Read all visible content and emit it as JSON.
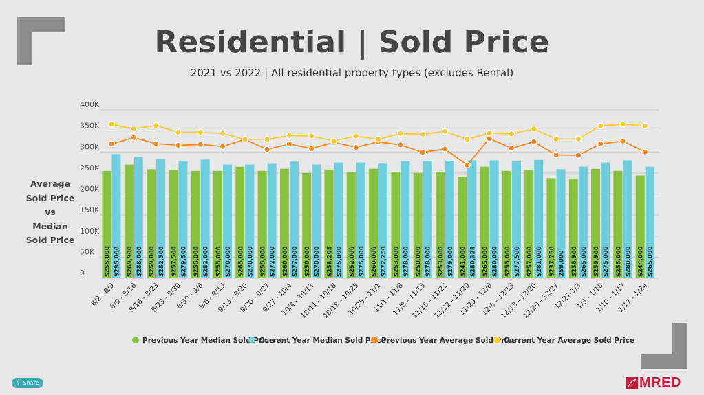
{
  "header": {
    "title": "Residential | Sold Price",
    "subtitle": "2021 vs 2022 | All residential property types (excludes Rental)"
  },
  "y_axis_label_lines": [
    "Average",
    "Sold Price",
    "vs",
    "Median",
    "Sold Price"
  ],
  "share_label": "Share",
  "logo_text": "MRED",
  "colors": {
    "prev_median": "#86c240",
    "curr_median": "#6fcedd",
    "prev_avg": "#f5891f",
    "curr_avg": "#fdc92f",
    "title": "#454545"
  },
  "chart_data": {
    "type": "bar",
    "title": "Residential | Sold Price",
    "ylabel": "Average Sold Price vs Median Sold Price",
    "ylim": [
      0,
      400000
    ],
    "yticks": [
      0,
      50000,
      100000,
      150000,
      200000,
      250000,
      300000,
      350000,
      400000
    ],
    "ytick_labels": [
      "0",
      "50K",
      "100K",
      "150K",
      "200K",
      "250K",
      "300K",
      "350K",
      "400K"
    ],
    "grid": true,
    "legend_position": "bottom",
    "categories": [
      "8/2 - 8/9",
      "8/9 - 8/16",
      "8/16 - 8/23",
      "8/23 - 8/30",
      "8/30 - 9/6",
      "9/6 - 9/13",
      "9/13 - 9/20",
      "9/20 - 9/27",
      "9/27 - 10/4",
      "10/4 - 10/11",
      "10/11 - 10/18",
      "10/18 - 10/25",
      "10/25 - 11/1",
      "11/1 - 11/8",
      "11/8 - 11/15",
      "11/15 - 11/22",
      "11/22 - 11/29",
      "11/29 - 12/6",
      "12/6 - 12/13",
      "12/13 - 12/20",
      "12/20 - 12/27",
      "12/27-1/3",
      "1/3 - 1/10",
      "1/10 - 1/17",
      "1/17 - 1/24"
    ],
    "series": [
      {
        "name": "Previous Year Median Sold Price",
        "kind": "bar",
        "values": [
          255000,
          269900,
          259000,
          257500,
          255000,
          255000,
          265000,
          255000,
          260000,
          250000,
          258205,
          252000,
          260000,
          253000,
          250000,
          253000,
          241000,
          265000,
          255000,
          257000,
          237750,
          236900,
          259900,
          255000,
          244000
        ],
        "labels": [
          "$255,000",
          "$269,900",
          "$259,000",
          "$257,500",
          "$255,000",
          "$255,000",
          "$265,000",
          "$255,000",
          "$260,000",
          "$250,000",
          "$258,205",
          "$252,000",
          "$260,000",
          "$253,000",
          "$250,000",
          "$253,000",
          "$241,000",
          "$265,000",
          "$255,000",
          "$257,000",
          "$237,750",
          "$236,900",
          "$259,900",
          "$255,000",
          "$244,000"
        ]
      },
      {
        "name": "Current Year Median Sold Price",
        "kind": "bar",
        "values": [
          295000,
          288000,
          282500,
          279500,
          282000,
          270000,
          270000,
          272000,
          277000,
          270000,
          275000,
          275000,
          272250,
          278000,
          278000,
          279000,
          280328,
          280000,
          277500,
          281000,
          259000,
          265000,
          275000,
          280000,
          265000
        ],
        "labels": [
          "$295,000",
          "$288,000",
          "$282,500",
          "$279,500",
          "$282,000",
          "$270,000",
          "$270,000",
          "$272,000",
          "$277,000",
          "$270,000",
          "$275,000",
          "$275,000",
          "$272,250",
          "$278,000",
          "$278,000",
          "$279,000",
          "$280,328",
          "$280,000",
          "$277,500",
          "$281,000",
          "259,000",
          "$265,000",
          "$275,000",
          "$280,000",
          "$265,000"
        ]
      },
      {
        "name": "Previous Year Average Sold Price",
        "kind": "line",
        "values": [
          319000,
          334000,
          320000,
          316000,
          318000,
          313000,
          330000,
          306000,
          319000,
          308000,
          323000,
          311000,
          324000,
          317000,
          299000,
          307000,
          269000,
          332000,
          309000,
          324000,
          293000,
          292000,
          319000,
          326000,
          300000
        ]
      },
      {
        "name": "Current Year Average Sold Price",
        "kind": "line",
        "values": [
          366000,
          355000,
          363000,
          347000,
          347000,
          344000,
          330000,
          330000,
          339000,
          338000,
          326000,
          338000,
          330000,
          344000,
          342000,
          349000,
          330000,
          345000,
          343000,
          355000,
          331000,
          331000,
          362000,
          366000,
          362000
        ]
      }
    ]
  }
}
